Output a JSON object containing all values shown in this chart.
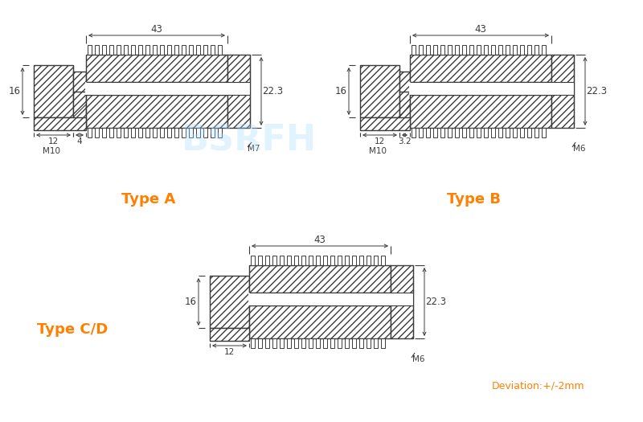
{
  "bg_color": "#ffffff",
  "line_color": "#3a3a3a",
  "orange_color": "#FF8000",
  "typeA_label": "Type A",
  "typeB_label": "Type B",
  "typeCD_label": "Type C/D",
  "deviation_label": "Deviation:+/-2mm",
  "dim_43": "43",
  "dim_16": "16",
  "dim_22_3": "22.3",
  "dim_12_A": "12",
  "dim_4": "4",
  "dim_M10_A": "M10",
  "dim_M7": "M7",
  "dim_12_B": "12",
  "dim_3_2": "3.2",
  "dim_M10_B": "M10",
  "dim_M6_B": "M6",
  "dim_12_CD": "12",
  "dim_M6_CD": "M6",
  "watermark_text": "BSRFH",
  "watermark_color": "#aaddff",
  "watermark_alpha": 0.35
}
